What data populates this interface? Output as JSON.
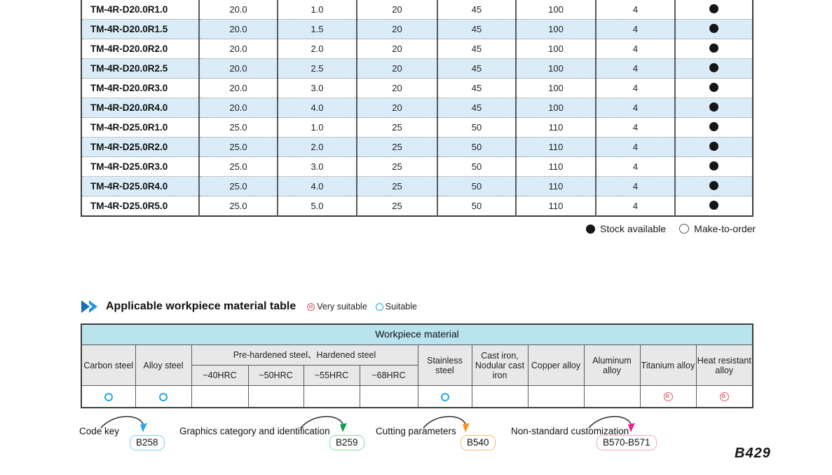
{
  "spec_table": {
    "rows": [
      {
        "model": "TM-4R-D20.0R1.0",
        "values": [
          "20.0",
          "1.0",
          "20",
          "45",
          "100",
          "4"
        ],
        "stock": "available"
      },
      {
        "model": "TM-4R-D20.0R1.5",
        "values": [
          "20.0",
          "1.5",
          "20",
          "45",
          "100",
          "4"
        ],
        "stock": "available"
      },
      {
        "model": "TM-4R-D20.0R2.0",
        "values": [
          "20.0",
          "2.0",
          "20",
          "45",
          "100",
          "4"
        ],
        "stock": "available"
      },
      {
        "model": "TM-4R-D20.0R2.5",
        "values": [
          "20.0",
          "2.5",
          "20",
          "45",
          "100",
          "4"
        ],
        "stock": "available"
      },
      {
        "model": "TM-4R-D20.0R3.0",
        "values": [
          "20.0",
          "3.0",
          "20",
          "45",
          "100",
          "4"
        ],
        "stock": "available"
      },
      {
        "model": "TM-4R-D20.0R4.0",
        "values": [
          "20.0",
          "4.0",
          "20",
          "45",
          "100",
          "4"
        ],
        "stock": "available"
      },
      {
        "model": "TM-4R-D25.0R1.0",
        "values": [
          "25.0",
          "1.0",
          "25",
          "50",
          "110",
          "4"
        ],
        "stock": "available"
      },
      {
        "model": "TM-4R-D25.0R2.0",
        "values": [
          "25.0",
          "2.0",
          "25",
          "50",
          "110",
          "4"
        ],
        "stock": "available"
      },
      {
        "model": "TM-4R-D25.0R3.0",
        "values": [
          "25.0",
          "3.0",
          "25",
          "50",
          "110",
          "4"
        ],
        "stock": "available"
      },
      {
        "model": "TM-4R-D25.0R4.0",
        "values": [
          "25.0",
          "4.0",
          "25",
          "50",
          "110",
          "4"
        ],
        "stock": "available"
      },
      {
        "model": "TM-4R-D25.0R5.0",
        "values": [
          "25.0",
          "5.0",
          "25",
          "50",
          "110",
          "4"
        ],
        "stock": "available"
      }
    ],
    "stock_legend": {
      "available": "Stock available",
      "make_to_order": "Make-to-order"
    }
  },
  "material_section": {
    "title": "Applicable workpiece material table",
    "legend": {
      "very_suitable": "Very suitable",
      "suitable": "Suitable"
    },
    "table": {
      "banner": "Workpiece material",
      "headers": {
        "carbon": "Carbon steel",
        "alloy": "Alloy steel",
        "prehardened_group": "Pre-hardened steel、Hardened steel",
        "hrc": [
          "~40HRC",
          "~50HRC",
          "~55HRC",
          "~68HRC"
        ],
        "stainless": "Stainless steel",
        "cast_iron": "Cast iron, Nodular cast iron",
        "copper": "Copper alloy",
        "aluminum": "Aluminum alloy",
        "titanium": "Titanium alloy",
        "heat": "Heat resistant alloy"
      },
      "marks": [
        "suitable",
        "suitable",
        "",
        "",
        "",
        "",
        "suitable",
        "",
        "",
        "",
        "very",
        "very"
      ]
    }
  },
  "footer": {
    "links": [
      {
        "label": "Code key",
        "badge": "B258",
        "badge_color": "#7fd2f0",
        "arrow_color": "#29abe2"
      },
      {
        "label": "Graphics category and identification",
        "badge": "B259",
        "badge_color": "#8fd6a9",
        "arrow_color": "#0ba14e"
      },
      {
        "label": "Cutting parameters",
        "badge": "B540",
        "badge_color": "#f4bd72",
        "arrow_color": "#f7941d"
      },
      {
        "label": "Non-standard customization",
        "badge": "B570-B571",
        "badge_color": "#f4a6c6",
        "arrow_color": "#ec1e8c"
      }
    ],
    "page_number": "B429"
  },
  "colors": {
    "row_alt": "#d9ecf8",
    "banner": "#b9e3ee",
    "header_bg": "#e8e8e8",
    "suitable_circle": "#1fa9e4",
    "very_suitable_circle": "#e8515a",
    "stock_dot": "#161616"
  }
}
